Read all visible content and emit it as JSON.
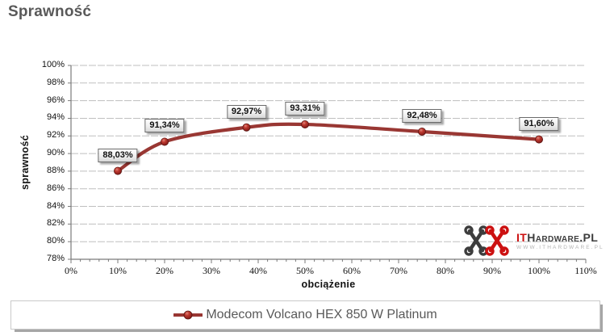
{
  "page": {
    "title": "Sprawność"
  },
  "chart_data": {
    "type": "line",
    "title": "Sprawność",
    "xlabel": "obciążenie",
    "ylabel": "sprawność",
    "xlim": [
      0,
      110
    ],
    "ylim": [
      78,
      100
    ],
    "grid": true,
    "legend_position": "bottom",
    "x_tick_values": [
      0,
      10,
      20,
      30,
      40,
      50,
      60,
      70,
      80,
      90,
      100,
      110
    ],
    "x_tick_labels": [
      "0%",
      "10%",
      "20%",
      "30%",
      "40%",
      "50%",
      "60%",
      "70%",
      "80%",
      "90%",
      "100%",
      "110%"
    ],
    "y_tick_values": [
      100,
      98,
      96,
      94,
      92,
      90,
      88,
      86,
      84,
      82,
      80,
      78
    ],
    "y_tick_labels": [
      "100%",
      "98%",
      "96%",
      "94%",
      "92%",
      "90%",
      "88%",
      "86%",
      "84%",
      "82%",
      "80%",
      "78%"
    ],
    "x_minor_tick_step": 2,
    "series": [
      {
        "name": "Modecom Volcano HEX 850 W Platinum",
        "color": "#993733",
        "x": [
          10,
          20,
          37.5,
          50,
          75,
          100
        ],
        "values": [
          88.03,
          91.34,
          92.97,
          93.31,
          92.48,
          91.6
        ],
        "labels": [
          "88,03%",
          "91,34%",
          "92,97%",
          "93,31%",
          "92,48%",
          "91,60%"
        ]
      }
    ]
  },
  "legend": {
    "label": "Modecom Volcano HEX 850 W Platinum"
  },
  "watermark": {
    "brand_prefix": "IT",
    "brand_suffix": "Hardware.PL",
    "url": "WWW.ITHARDWARE.PL"
  },
  "colors": {
    "line": "#993733",
    "marker": "#a8322c",
    "grid": "#bfbfbf",
    "axis": "#7a7a7a",
    "title_text": "#595959",
    "legend_text": "#595959",
    "logo_red": "#cc1111",
    "logo_gray": "#3d3d3d"
  }
}
